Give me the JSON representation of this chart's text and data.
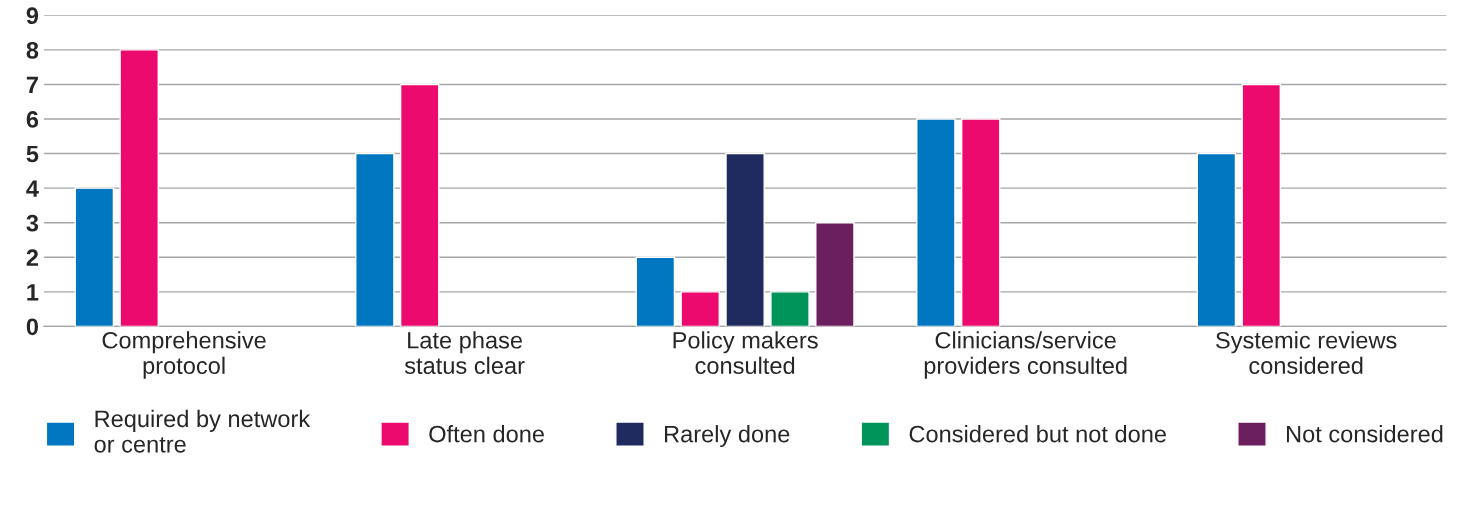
{
  "chart_data": {
    "type": "bar",
    "categories": [
      "Comprehensive\nprotocol",
      "Late phase\nstatus clear",
      "Policy makers\nconsulted",
      "Clinicians/service\nproviders consulted",
      "Systemic reviews\nconsidered"
    ],
    "series": [
      {
        "name": "Required by network\nor centre",
        "color": "#0077c0",
        "values": [
          4,
          5,
          2,
          6,
          5
        ]
      },
      {
        "name": "Often done",
        "color": "#ec0a6e",
        "values": [
          8,
          7,
          1,
          6,
          7
        ]
      },
      {
        "name": "Rarely done",
        "color": "#1f2a5e",
        "values": [
          null,
          null,
          5,
          null,
          null
        ]
      },
      {
        "name": "Considered but not done",
        "color": "#00945a",
        "values": [
          null,
          null,
          1,
          null,
          null
        ]
      },
      {
        "name": "Not considered",
        "color": "#6b1f5e",
        "values": [
          null,
          null,
          3,
          null,
          null
        ]
      }
    ],
    "ylim": [
      0,
      9
    ],
    "yticks": [
      0,
      1,
      2,
      3,
      4,
      5,
      6,
      7,
      8,
      9
    ],
    "grid": "y",
    "legend": "bottom"
  }
}
